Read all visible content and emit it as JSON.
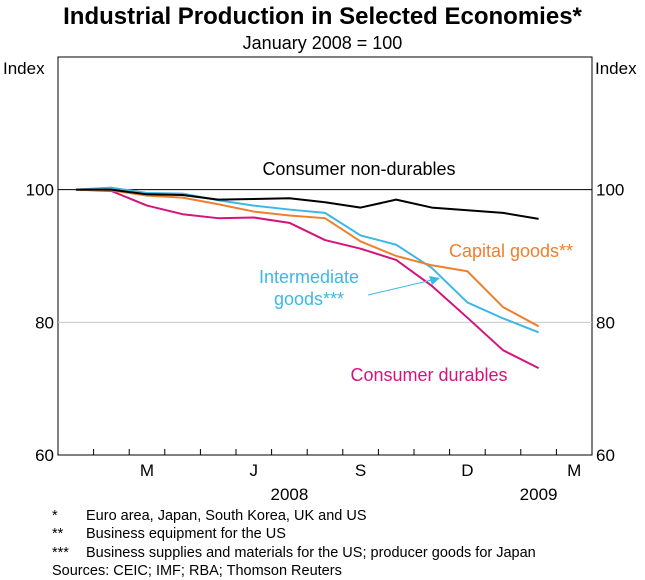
{
  "title": "Industrial Production in Selected Economies*",
  "subtitle": "January 2008 = 100",
  "notes": [
    {
      "mark": "*",
      "text": "Euro area, Japan, South Korea, UK and US"
    },
    {
      "mark": "**",
      "text": "Business equipment for the US"
    },
    {
      "mark": "***",
      "text": "Business supplies and materials for the US; producer goods for Japan"
    }
  ],
  "sources": "Sources: CEIC; IMF; RBA; Thomson Reuters",
  "colors": {
    "consumer_nondurables": "#000000",
    "capital_goods": "#f07f2d",
    "intermediate_goods": "#3bb8e6",
    "consumer_durables": "#d4147d"
  },
  "chart_data": {
    "type": "line",
    "title": "Industrial Production in Selected Economies*",
    "subtitle": "January 2008 = 100",
    "ylabel_left": "Index",
    "ylabel_right": "Index",
    "ylim": [
      60,
      120
    ],
    "yticks": [
      60,
      80,
      100
    ],
    "gridlines": [
      80,
      100
    ],
    "x_month_index": [
      1,
      2,
      3,
      4,
      5,
      6,
      7,
      8,
      9,
      10,
      11,
      12,
      13,
      14,
      15
    ],
    "x_tick_labels": [
      {
        "label": "M",
        "month_index": 3
      },
      {
        "label": "J",
        "month_index": 6
      },
      {
        "label": "S",
        "month_index": 9
      },
      {
        "label": "D",
        "month_index": 12
      },
      {
        "label": "M",
        "month_index": 15
      }
    ],
    "year_labels": [
      {
        "label": "2008",
        "month_index": 7
      },
      {
        "label": "2009",
        "month_index": 14
      }
    ],
    "series": [
      {
        "key": "consumer_nondurables",
        "name": "Consumer non-durables",
        "values": [
          100,
          100,
          99.3,
          99.2,
          98.5,
          98.6,
          98.7,
          98.1,
          97.3,
          98.5,
          97.3,
          96.9,
          96.5,
          95.6
        ]
      },
      {
        "key": "capital_goods",
        "name": "Capital goods**",
        "values": [
          100,
          99.9,
          99.1,
          98.8,
          97.8,
          96.7,
          96.1,
          95.7,
          92.2,
          90.0,
          88.6,
          87.7,
          82.3,
          79.4
        ]
      },
      {
        "key": "intermediate_goods",
        "name": "Intermediate goods***",
        "values": [
          100,
          100.3,
          99.5,
          99.4,
          98.4,
          97.6,
          97.0,
          96.5,
          93.1,
          91.7,
          88.2,
          83.0,
          80.6,
          78.5
        ]
      },
      {
        "key": "consumer_durables",
        "name": "Consumer durables",
        "values": [
          100,
          99.8,
          97.6,
          96.3,
          95.7,
          95.8,
          95.0,
          92.4,
          91.1,
          89.4,
          85.5,
          80.7,
          75.8,
          73.1
        ]
      }
    ],
    "annotations": {
      "consumer_nondurables": "Consumer non-durables",
      "capital_goods": "Capital goods**",
      "intermediate_line1": "Intermediate",
      "intermediate_line2": "goods***",
      "consumer_durables": "Consumer durables"
    }
  }
}
